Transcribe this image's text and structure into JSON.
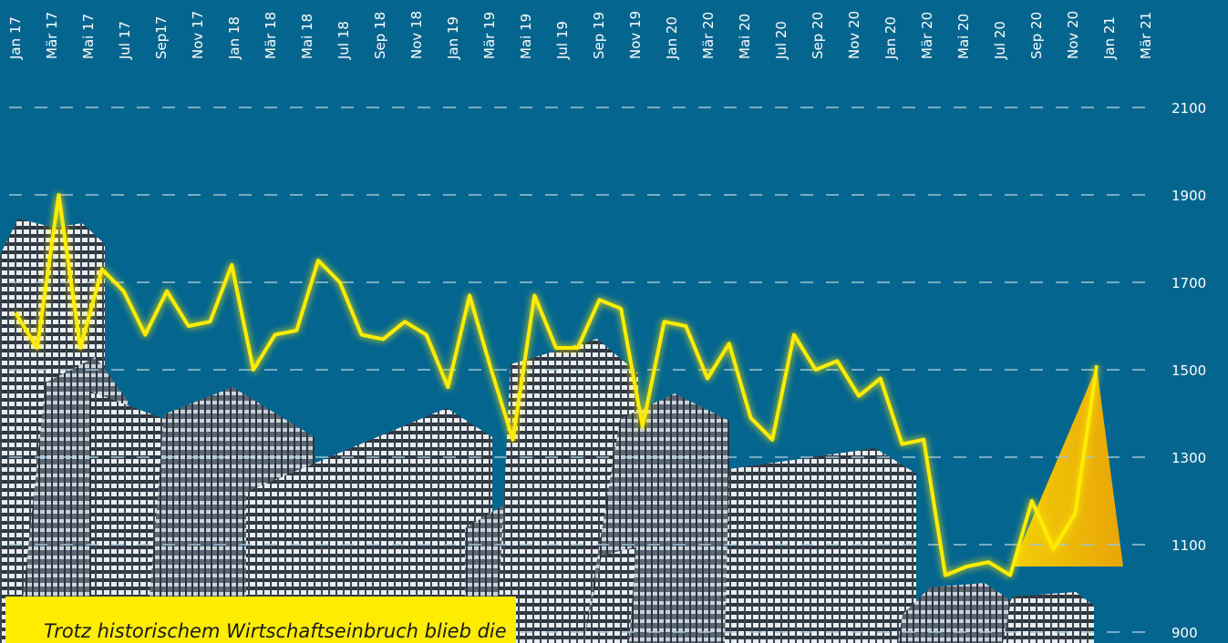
{
  "chart_data": {
    "type": "line",
    "x_labels": [
      "Jan 17",
      "Mär 17",
      "Mai 17",
      "Jul 17",
      "Sep17",
      "Nov 17",
      "Jan 18",
      "Mär 18",
      "Mai 18",
      "Jul 18",
      "Sep 18",
      "Nov 18",
      "Jan 19",
      "Mär 19",
      "Mai 19",
      "Jul 19",
      "Sep 19",
      "Nov 19",
      "Jan 20",
      "Mär 20",
      "Mai 20",
      "Jul 20",
      "Sep 20",
      "Nov 20",
      "Jan 20",
      "Mär 20",
      "Mai 20",
      "Jul 20",
      "Sep 20",
      "Nov 20",
      "Jan 21",
      "Mär 21"
    ],
    "values": [
      1630,
      1550,
      1900,
      1550,
      1730,
      1680,
      1580,
      1680,
      1600,
      1610,
      1740,
      1500,
      1580,
      1590,
      1750,
      1700,
      1580,
      1570,
      1610,
      1580,
      1460,
      1670,
      1500,
      1340,
      1670,
      1550,
      1550,
      1660,
      1640,
      1370,
      1610,
      1600,
      1480,
      1560,
      1390,
      1340,
      1580,
      1500,
      1520,
      1440,
      1480,
      1330,
      1340,
      1030,
      1050,
      1060,
      1030,
      1200,
      1090,
      1170,
      1510
    ],
    "color": "#ffec00",
    "ylim": [
      900,
      2100
    ],
    "yticks": [
      900,
      1100,
      1300,
      1500,
      1700,
      1900,
      2100
    ],
    "grid": true,
    "annotation": "Trotz historischem Wirtschaftseinbruch blieb die"
  }
}
